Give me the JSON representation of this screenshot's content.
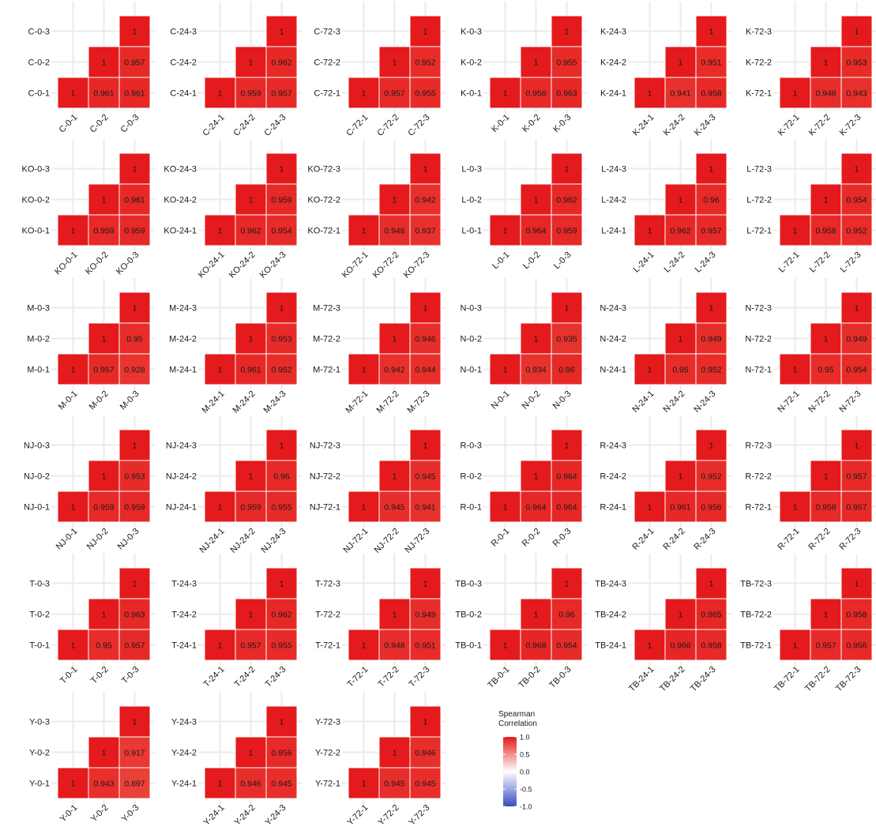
{
  "chart_data": {
    "type": "heatmap",
    "layout": "6 columns x 6 rows of lower-triangular correlation matrices",
    "grid": true,
    "legend_position": "bottom-right",
    "cell_color": "#E41A1C",
    "panels": [
      {
        "labels": [
          "C-0-1",
          "C-0-2",
          "C-0-3"
        ],
        "values": {
          "r2c1": 0.961,
          "r3c1": 0.961,
          "r3c2": 0.957
        }
      },
      {
        "labels": [
          "C-24-1",
          "C-24-2",
          "C-24-3"
        ],
        "values": {
          "r2c1": 0.959,
          "r3c1": 0.957,
          "r3c2": 0.962
        }
      },
      {
        "labels": [
          "C-72-1",
          "C-72-2",
          "C-72-3"
        ],
        "values": {
          "r2c1": 0.957,
          "r3c1": 0.955,
          "r3c2": 0.952
        }
      },
      {
        "labels": [
          "K-0-1",
          "K-0-2",
          "K-0-3"
        ],
        "values": {
          "r2c1": 0.956,
          "r3c1": 0.963,
          "r3c2": 0.955
        }
      },
      {
        "labels": [
          "K-24-1",
          "K-24-2",
          "K-24-3"
        ],
        "values": {
          "r2c1": 0.941,
          "r3c1": 0.958,
          "r3c2": 0.951
        }
      },
      {
        "labels": [
          "K-72-1",
          "K-72-2",
          "K-72-3"
        ],
        "values": {
          "r2c1": 0.948,
          "r3c1": 0.943,
          "r3c2": 0.953
        }
      },
      {
        "labels": [
          "KO-0-1",
          "KO-0-2",
          "KO-0-3"
        ],
        "values": {
          "r2c1": 0.959,
          "r3c1": 0.959,
          "r3c2": 0.961
        }
      },
      {
        "labels": [
          "KO-24-1",
          "KO-24-2",
          "KO-24-3"
        ],
        "values": {
          "r2c1": 0.962,
          "r3c1": 0.954,
          "r3c2": 0.959
        }
      },
      {
        "labels": [
          "KO-72-1",
          "KO-72-2",
          "KO-72-3"
        ],
        "values": {
          "r2c1": 0.948,
          "r3c1": 0.937,
          "r3c2": 0.942
        }
      },
      {
        "labels": [
          "L-0-1",
          "L-0-2",
          "L-0-3"
        ],
        "values": {
          "r2c1": 0.964,
          "r3c1": 0.959,
          "r3c2": 0.962
        }
      },
      {
        "labels": [
          "L-24-1",
          "L-24-2",
          "L-24-3"
        ],
        "values": {
          "r2c1": 0.962,
          "r3c1": 0.957,
          "r3c2": 0.96
        }
      },
      {
        "labels": [
          "L-72-1",
          "L-72-2",
          "L-72-3"
        ],
        "values": {
          "r2c1": 0.958,
          "r3c1": 0.952,
          "r3c2": 0.954
        }
      },
      {
        "labels": [
          "M-0-1",
          "M-0-2",
          "M-0-3"
        ],
        "values": {
          "r2c1": 0.957,
          "r3c1": 0.928,
          "r3c2": 0.95
        }
      },
      {
        "labels": [
          "M-24-1",
          "M-24-2",
          "M-24-3"
        ],
        "values": {
          "r2c1": 0.961,
          "r3c1": 0.952,
          "r3c2": 0.953
        }
      },
      {
        "labels": [
          "M-72-1",
          "M-72-2",
          "M-72-3"
        ],
        "values": {
          "r2c1": 0.942,
          "r3c1": 0.944,
          "r3c2": 0.946
        }
      },
      {
        "labels": [
          "N-0-1",
          "N-0-2",
          "N-0-3"
        ],
        "values": {
          "r2c1": 0.934,
          "r3c1": 0.96,
          "r3c2": 0.935
        }
      },
      {
        "labels": [
          "N-24-1",
          "N-24-2",
          "N-24-3"
        ],
        "values": {
          "r2c1": 0.95,
          "r3c1": 0.952,
          "r3c2": 0.949
        }
      },
      {
        "labels": [
          "N-72-1",
          "N-72-2",
          "N-72-3"
        ],
        "values": {
          "r2c1": 0.95,
          "r3c1": 0.954,
          "r3c2": 0.949
        }
      },
      {
        "labels": [
          "NJ-0-1",
          "NJ-0-2",
          "NJ-0-3"
        ],
        "values": {
          "r2c1": 0.959,
          "r3c1": 0.959,
          "r3c2": 0.953
        }
      },
      {
        "labels": [
          "NJ-24-1",
          "NJ-24-2",
          "NJ-24-3"
        ],
        "values": {
          "r2c1": 0.959,
          "r3c1": 0.955,
          "r3c2": 0.96
        }
      },
      {
        "labels": [
          "NJ-72-1",
          "NJ-72-2",
          "NJ-72-3"
        ],
        "values": {
          "r2c1": 0.945,
          "r3c1": 0.941,
          "r3c2": 0.945
        }
      },
      {
        "labels": [
          "R-0-1",
          "R-0-2",
          "R-0-3"
        ],
        "values": {
          "r2c1": 0.964,
          "r3c1": 0.964,
          "r3c2": 0.964
        }
      },
      {
        "labels": [
          "R-24-1",
          "R-24-2",
          "R-24-3"
        ],
        "values": {
          "r2c1": 0.961,
          "r3c1": 0.956,
          "r3c2": 0.952
        }
      },
      {
        "labels": [
          "R-72-1",
          "R-72-2",
          "R-72-3"
        ],
        "values": {
          "r2c1": 0.958,
          "r3c1": 0.957,
          "r3c2": 0.957
        }
      },
      {
        "labels": [
          "T-0-1",
          "T-0-2",
          "T-0-3"
        ],
        "values": {
          "r2c1": 0.95,
          "r3c1": 0.957,
          "r3c2": 0.963
        }
      },
      {
        "labels": [
          "T-24-1",
          "T-24-2",
          "T-24-3"
        ],
        "values": {
          "r2c1": 0.957,
          "r3c1": 0.955,
          "r3c2": 0.962
        }
      },
      {
        "labels": [
          "T-72-1",
          "T-72-2",
          "T-72-3"
        ],
        "values": {
          "r2c1": 0.948,
          "r3c1": 0.951,
          "r3c2": 0.949
        }
      },
      {
        "labels": [
          "TB-0-1",
          "TB-0-2",
          "TB-0-3"
        ],
        "values": {
          "r2c1": 0.968,
          "r3c1": 0.954,
          "r3c2": 0.96
        }
      },
      {
        "labels": [
          "TB-24-1",
          "TB-24-2",
          "TB-24-3"
        ],
        "values": {
          "r2c1": 0.966,
          "r3c1": 0.958,
          "r3c2": 0.965
        }
      },
      {
        "labels": [
          "TB-72-1",
          "TB-72-2",
          "TB-72-3"
        ],
        "values": {
          "r2c1": 0.957,
          "r3c1": 0.956,
          "r3c2": 0.958
        }
      },
      {
        "labels": [
          "Y-0-1",
          "Y-0-2",
          "Y-0-3"
        ],
        "values": {
          "r2c1": 0.943,
          "r3c1": 0.897,
          "r3c2": 0.917
        }
      },
      {
        "labels": [
          "Y-24-1",
          "Y-24-2",
          "Y-24-3"
        ],
        "values": {
          "r2c1": 0.946,
          "r3c1": 0.945,
          "r3c2": 0.956
        }
      },
      {
        "labels": [
          "Y-72-1",
          "Y-72-2",
          "Y-72-3"
        ],
        "values": {
          "r2c1": 0.945,
          "r3c1": 0.945,
          "r3c2": 0.946
        }
      }
    ],
    "legend": {
      "title_lines": [
        "Spearman",
        "Correlation"
      ],
      "ticks": [
        "1.0",
        "0.5",
        "0.0",
        "-0.5",
        "-1.0"
      ],
      "range": [
        -1,
        1
      ],
      "colors": {
        "high": "#E41A1C",
        "mid": "#FFFFFF",
        "low": "#3B4CC0"
      }
    }
  }
}
